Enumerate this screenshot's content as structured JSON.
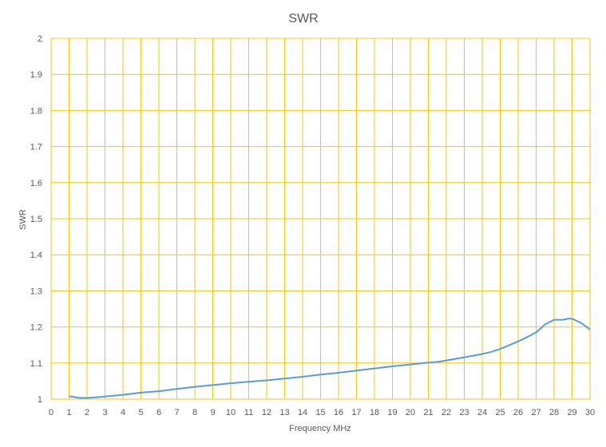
{
  "chart_data": {
    "type": "line",
    "title": "SWR",
    "xlabel": "Frequency MHz",
    "ylabel": "SWR",
    "xlim": [
      0,
      30
    ],
    "ylim": [
      1,
      2
    ],
    "x_ticks": [
      "0",
      "1",
      "2",
      "3",
      "4",
      "5",
      "6",
      "7",
      "8",
      "9",
      "10",
      "11",
      "12",
      "13",
      "14",
      "15",
      "16",
      "17",
      "18",
      "19",
      "20",
      "21",
      "22",
      "23",
      "24",
      "25",
      "26",
      "27",
      "28",
      "29",
      "30"
    ],
    "y_ticks": [
      "1",
      "1.1",
      "1.2",
      "1.3",
      "1.4",
      "1.5",
      "1.6",
      "1.7",
      "1.8",
      "1.9",
      "2"
    ],
    "grid": true,
    "grid_color": "#f0c419",
    "line_color": "#5b9bd5",
    "series": [
      {
        "x": [
          1,
          1.5,
          2,
          3,
          4,
          5,
          6,
          7,
          8,
          9,
          10,
          11,
          12,
          13,
          14,
          15,
          16,
          17,
          18,
          19,
          20,
          21,
          21.5,
          22,
          23,
          24,
          24.5,
          25,
          26,
          26.5,
          27,
          27.5,
          28,
          28.5,
          28.8,
          29,
          29.5,
          30
        ],
        "y": [
          1.008,
          1.004,
          1.003,
          1.007,
          1.012,
          1.018,
          1.022,
          1.028,
          1.034,
          1.039,
          1.044,
          1.048,
          1.052,
          1.057,
          1.062,
          1.068,
          1.073,
          1.079,
          1.085,
          1.091,
          1.096,
          1.101,
          1.103,
          1.107,
          1.116,
          1.125,
          1.131,
          1.139,
          1.16,
          1.172,
          1.185,
          1.207,
          1.22,
          1.22,
          1.223,
          1.223,
          1.211,
          1.193
        ]
      }
    ]
  }
}
